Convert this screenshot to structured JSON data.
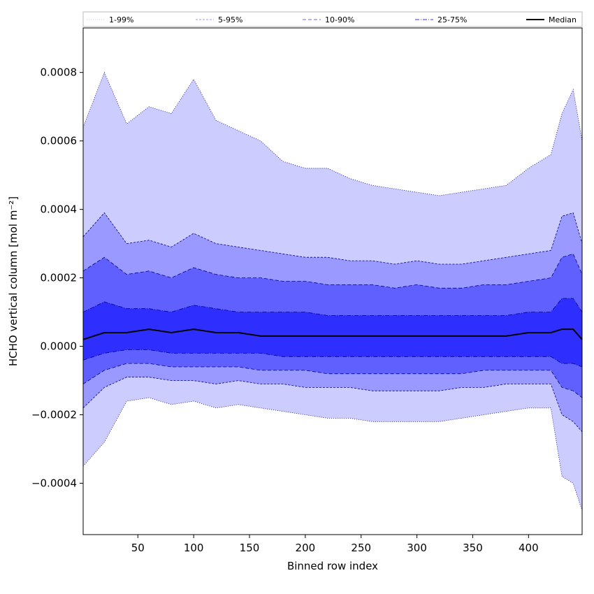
{
  "chart_data": {
    "type": "area",
    "xlabel": "Binned row index",
    "ylabel": "HCHO vertical column [mol m⁻²]",
    "xlim": [
      1,
      448
    ],
    "ylim": [
      -0.00055,
      0.00093
    ],
    "xticks": [
      50,
      100,
      150,
      200,
      250,
      300,
      350,
      400
    ],
    "yticks": [
      -0.0004,
      -0.0002,
      0.0,
      0.0002,
      0.0004,
      0.0006,
      0.0008
    ],
    "ytick_labels": [
      "−0.0004",
      "−0.0002",
      "0.0000",
      "0.0002",
      "0.0004",
      "0.0006",
      "0.0008"
    ],
    "grid": false,
    "legend_position": "top, outside plot",
    "x": [
      1,
      20,
      40,
      60,
      80,
      100,
      120,
      140,
      160,
      180,
      200,
      220,
      240,
      260,
      280,
      300,
      320,
      340,
      360,
      380,
      400,
      420,
      430,
      440,
      448
    ],
    "series": [
      {
        "name": "1-99%",
        "style": "dotted",
        "color": "#c0c0ff",
        "upper": [
          0.00064,
          0.0008,
          0.00065,
          0.0007,
          0.00068,
          0.00078,
          0.00066,
          0.00063,
          0.0006,
          0.00054,
          0.00052,
          0.00052,
          0.00049,
          0.00047,
          0.00046,
          0.00045,
          0.00044,
          0.00045,
          0.00046,
          0.00047,
          0.00052,
          0.00056,
          0.00068,
          0.00075,
          0.0006
        ],
        "lower": [
          -0.00035,
          -0.00028,
          -0.00016,
          -0.00015,
          -0.00017,
          -0.00016,
          -0.00018,
          -0.00017,
          -0.00018,
          -0.00019,
          -0.0002,
          -0.00021,
          -0.00021,
          -0.00022,
          -0.00022,
          -0.00022,
          -0.00022,
          -0.00021,
          -0.0002,
          -0.00019,
          -0.00018,
          -0.00018,
          -0.00038,
          -0.0004,
          -0.00048
        ]
      },
      {
        "name": "5-95%",
        "style": "dashed-thin",
        "color": "#9898ff",
        "upper": [
          0.00032,
          0.00039,
          0.0003,
          0.00031,
          0.00029,
          0.00033,
          0.0003,
          0.00029,
          0.00028,
          0.00027,
          0.00026,
          0.00026,
          0.00025,
          0.00025,
          0.00024,
          0.00025,
          0.00024,
          0.00024,
          0.00025,
          0.00026,
          0.00027,
          0.00028,
          0.00038,
          0.00039,
          0.0003
        ],
        "lower": [
          -0.00018,
          -0.00012,
          -9e-05,
          -9e-05,
          -0.0001,
          -0.0001,
          -0.00011,
          -0.0001,
          -0.00011,
          -0.00011,
          -0.00012,
          -0.00012,
          -0.00012,
          -0.00013,
          -0.00013,
          -0.00013,
          -0.00013,
          -0.00012,
          -0.00012,
          -0.00011,
          -0.00011,
          -0.00011,
          -0.0002,
          -0.00022,
          -0.00025
        ]
      },
      {
        "name": "10-90%",
        "style": "dashed",
        "color": "#6464ff",
        "upper": [
          0.00022,
          0.00026,
          0.00021,
          0.00022,
          0.0002,
          0.00023,
          0.00021,
          0.0002,
          0.0002,
          0.00019,
          0.00019,
          0.00018,
          0.00018,
          0.00018,
          0.00017,
          0.00018,
          0.00017,
          0.00017,
          0.00018,
          0.00018,
          0.00019,
          0.0002,
          0.00026,
          0.00027,
          0.00021
        ],
        "lower": [
          -0.00011,
          -7e-05,
          -5e-05,
          -5e-05,
          -6e-05,
          -6e-05,
          -6e-05,
          -6e-05,
          -7e-05,
          -7e-05,
          -7e-05,
          -8e-05,
          -8e-05,
          -8e-05,
          -8e-05,
          -8e-05,
          -8e-05,
          -8e-05,
          -7e-05,
          -7e-05,
          -7e-05,
          -7e-05,
          -0.00012,
          -0.00013,
          -0.00015
        ]
      },
      {
        "name": "25-75%",
        "style": "dashdot",
        "color": "#3232ff",
        "upper": [
          0.0001,
          0.00013,
          0.00011,
          0.00011,
          0.0001,
          0.00012,
          0.00011,
          0.0001,
          0.0001,
          0.0001,
          0.0001,
          9e-05,
          9e-05,
          9e-05,
          9e-05,
          9e-05,
          9e-05,
          9e-05,
          9e-05,
          9e-05,
          0.0001,
          0.0001,
          0.00014,
          0.00014,
          0.0001
        ],
        "lower": [
          -4e-05,
          -2e-05,
          -1e-05,
          -1e-05,
          -2e-05,
          -2e-05,
          -2e-05,
          -2e-05,
          -2e-05,
          -3e-05,
          -3e-05,
          -3e-05,
          -3e-05,
          -3e-05,
          -3e-05,
          -3e-05,
          -3e-05,
          -3e-05,
          -3e-05,
          -3e-05,
          -3e-05,
          -3e-05,
          -5e-05,
          -5e-05,
          -6e-05
        ]
      },
      {
        "name": "Median",
        "style": "solid",
        "color": "#000000",
        "values": [
          2e-05,
          4e-05,
          4e-05,
          5e-05,
          4e-05,
          5e-05,
          4e-05,
          4e-05,
          3e-05,
          3e-05,
          3e-05,
          3e-05,
          3e-05,
          3e-05,
          3e-05,
          3e-05,
          3e-05,
          3e-05,
          3e-05,
          3e-05,
          4e-05,
          4e-05,
          5e-05,
          5e-05,
          2e-05
        ]
      }
    ],
    "fill_colors": [
      "#ccccff",
      "#9999ff",
      "#6060ff",
      "#2e2eff"
    ]
  }
}
